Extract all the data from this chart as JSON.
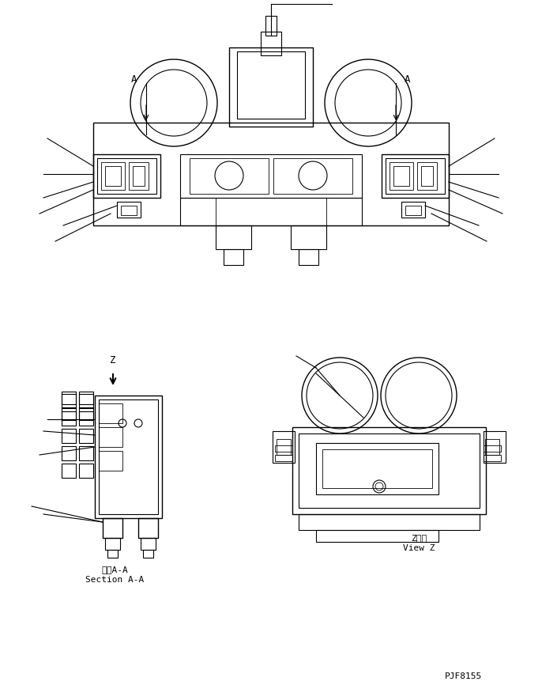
{
  "bg_color": "#ffffff",
  "line_color": "#000000",
  "fig_width": 6.86,
  "fig_height": 8.71,
  "dpi": 100,
  "part_number": "PJF8155",
  "label_section_aa_jp": "断面A-A",
  "label_section_aa_en": "Section A-A",
  "label_view_z_jp": "Z　視",
  "label_view_z_en": "View Z"
}
